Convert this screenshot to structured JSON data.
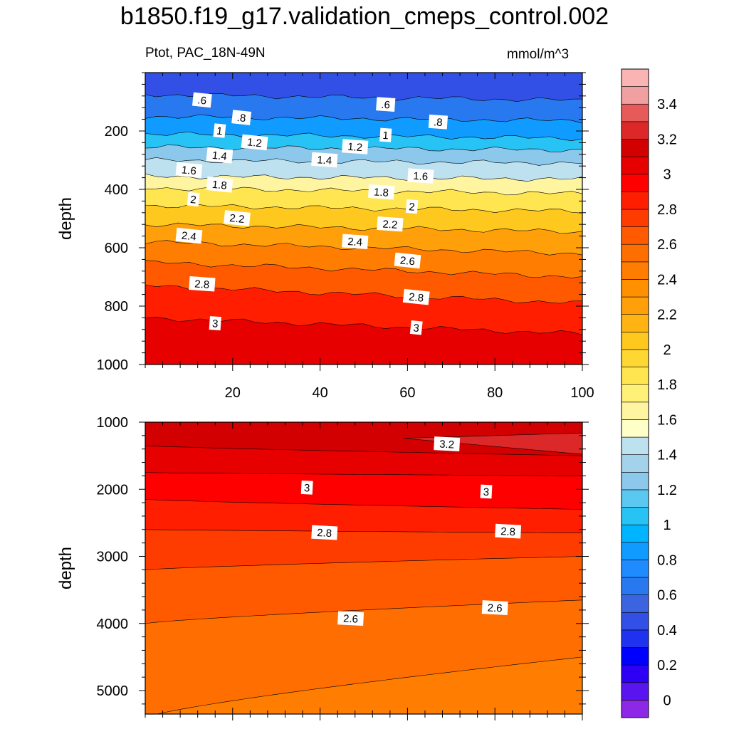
{
  "chart_data": {
    "type": "contour",
    "title": "b1850.f19_g17.validation_cmeps_control.002",
    "left_string": "Ptot, PAC_18N-49N",
    "right_string": "mmol/m^3",
    "panels": [
      {
        "name": "upper",
        "ylabel": "depth",
        "xlim": [
          0,
          100
        ],
        "ylim": [
          1000,
          0
        ],
        "xticks": [
          20,
          40,
          60,
          80,
          100
        ],
        "xtick_labels": [
          "20",
          "40",
          "60",
          "80",
          "100"
        ],
        "yticks": [
          200,
          400,
          600,
          800,
          1000
        ],
        "ytick_labels": [
          "200",
          "400",
          "600",
          "800",
          "1000"
        ],
        "contour_levels": [
          0.6,
          0.8,
          1.0,
          1.2,
          1.4,
          1.6,
          1.8,
          2.0,
          2.2,
          2.4,
          2.6,
          2.8,
          3.0
        ],
        "contour_depths_left": [
          75,
          150,
          210,
          255,
          300,
          355,
          395,
          455,
          520,
          580,
          650,
          730,
          840
        ],
        "contour_depths_right": [
          95,
          165,
          225,
          265,
          310,
          365,
          415,
          475,
          545,
          620,
          700,
          790,
          895
        ],
        "contour_labels": [
          {
            "text": ".6",
            "x": 13,
            "depth": 95
          },
          {
            "text": ".6",
            "x": 55,
            "depth": 110
          },
          {
            "text": ".8",
            "x": 22,
            "depth": 155
          },
          {
            "text": ".8",
            "x": 67,
            "depth": 170
          },
          {
            "text": "1",
            "x": 17,
            "depth": 200
          },
          {
            "text": "1",
            "x": 55,
            "depth": 215
          },
          {
            "text": "1.2",
            "x": 25,
            "depth": 240
          },
          {
            "text": "1.2",
            "x": 48,
            "depth": 255
          },
          {
            "text": "1.4",
            "x": 17,
            "depth": 285
          },
          {
            "text": "1.4",
            "x": 41,
            "depth": 300
          },
          {
            "text": "1.6",
            "x": 10,
            "depth": 335
          },
          {
            "text": "1.6",
            "x": 63,
            "depth": 355
          },
          {
            "text": "1.8",
            "x": 17,
            "depth": 385
          },
          {
            "text": "1.8",
            "x": 54,
            "depth": 410
          },
          {
            "text": "2",
            "x": 11,
            "depth": 435
          },
          {
            "text": "2",
            "x": 61,
            "depth": 460
          },
          {
            "text": "2.2",
            "x": 21,
            "depth": 500
          },
          {
            "text": "2.2",
            "x": 56,
            "depth": 520
          },
          {
            "text": "2.4",
            "x": 10,
            "depth": 560
          },
          {
            "text": "2.4",
            "x": 48,
            "depth": 580
          },
          {
            "text": "2.6",
            "x": 60,
            "depth": 645
          },
          {
            "text": "2.8",
            "x": 13,
            "depth": 725
          },
          {
            "text": "2.8",
            "x": 62,
            "depth": 770
          },
          {
            "text": "3",
            "x": 16,
            "depth": 860
          },
          {
            "text": "3",
            "x": 62,
            "depth": 875
          }
        ]
      },
      {
        "name": "lower",
        "ylabel": "depth",
        "xlim": [
          0,
          100
        ],
        "ylim": [
          5350,
          1000
        ],
        "xticks": [
          20,
          40,
          60,
          80,
          100
        ],
        "yticks": [
          1000,
          2000,
          3000,
          4000,
          5000
        ],
        "ytick_labels": [
          "1000",
          "2000",
          "3000",
          "4000",
          "5000"
        ],
        "contour_levels": [
          3.1,
          3.0,
          2.9,
          2.8,
          2.7,
          2.6,
          2.5
        ],
        "contour_depths_left": [
          1350,
          1750,
          2150,
          2600,
          3200,
          4000,
          5400
        ],
        "contour_depths_right": [
          1500,
          1800,
          2300,
          2650,
          3000,
          3650,
          4500
        ],
        "max_region": {
          "level": 3.2,
          "x_start": 59,
          "depth_top": 1160,
          "depth_bottom": 1480
        },
        "contour_labels": [
          {
            "text": "3.2",
            "x": 69,
            "depth": 1330
          },
          {
            "text": "3",
            "x": 37,
            "depth": 1980
          },
          {
            "text": "3",
            "x": 78,
            "depth": 2040
          },
          {
            "text": "2.8",
            "x": 41,
            "depth": 2650
          },
          {
            "text": "2.8",
            "x": 83,
            "depth": 2630
          },
          {
            "text": "2.6",
            "x": 47,
            "depth": 3930
          },
          {
            "text": "2.6",
            "x": 80,
            "depth": 3770
          }
        ]
      }
    ],
    "colorbar": {
      "boundaries": [
        -0.1,
        0,
        0.1,
        0.2,
        0.3,
        0.4,
        0.5,
        0.6,
        0.7,
        0.8,
        0.9,
        1.0,
        1.1,
        1.2,
        1.3,
        1.4,
        1.5,
        1.6,
        1.7,
        1.8,
        1.9,
        2.0,
        2.1,
        2.2,
        2.3,
        2.4,
        2.5,
        2.6,
        2.7,
        2.8,
        2.9,
        3.0,
        3.1,
        3.2,
        3.3,
        3.4,
        3.5,
        3.6
      ],
      "tick_values": [
        0,
        0.2,
        0.4,
        0.6,
        0.8,
        1,
        1.2,
        1.4,
        1.6,
        1.8,
        2,
        2.2,
        2.4,
        2.6,
        2.8,
        3,
        3.2,
        3.4
      ],
      "tick_labels": [
        "0",
        "0.2",
        "0.4",
        "0.6",
        "0.8",
        "1",
        "1.2",
        "1.4",
        "1.6",
        "1.8",
        "2",
        "2.2",
        "2.4",
        "2.6",
        "2.8",
        "3",
        "3.2",
        "3.4"
      ],
      "colors": [
        "#8c28e6",
        "#5a14f0",
        "#2d00f5",
        "#0000ff",
        "#1e32f0",
        "#3250e6",
        "#3c64e1",
        "#2878f0",
        "#1e8cff",
        "#0f9bff",
        "#00b4ff",
        "#28c3f5",
        "#5ac8f0",
        "#8cc8eb",
        "#a5d2eb",
        "#bee1f0",
        "#ffffc8",
        "#fff5a0",
        "#fff078",
        "#ffe650",
        "#ffd732",
        "#ffc81e",
        "#ffb414",
        "#ffa00a",
        "#ff9100",
        "#ff7d00",
        "#ff6e00",
        "#ff5a00",
        "#ff3c00",
        "#ff1e00",
        "#ff0000",
        "#e60000",
        "#d20000",
        "#dc2828",
        "#e65a5a",
        "#f0a0a0",
        "#fab4b4"
      ]
    }
  }
}
